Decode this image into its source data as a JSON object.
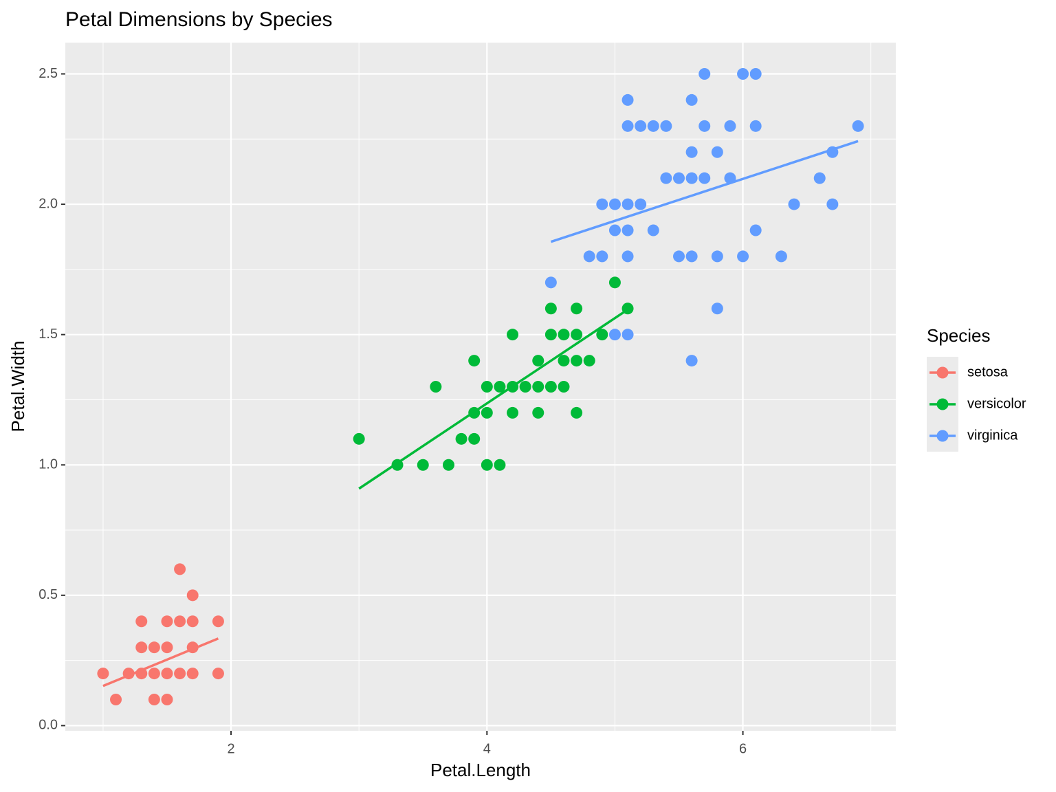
{
  "chart_data": {
    "type": "scatter",
    "title": "Petal Dimensions by Species",
    "x_label": "Petal.Length",
    "y_label": "Petal.Width",
    "legend_title": "Species",
    "legend_position": "right",
    "xlim": [
      0.705,
      7.195
    ],
    "ylim": [
      -0.02,
      2.62
    ],
    "xticks": [
      2,
      4,
      6
    ],
    "yticks": [
      {
        "value": 0,
        "label": "0.0"
      },
      0.5,
      {
        "value": 1,
        "label": "1.0"
      },
      1.5,
      {
        "value": 2,
        "label": "2.0"
      },
      2.5
    ],
    "x_minor_ticks": [
      1,
      3,
      5,
      7
    ],
    "y_minor_ticks": [
      0.25,
      0.75,
      1.25,
      1.75,
      2.25
    ],
    "grid": true,
    "series": [
      {
        "name": "setosa",
        "color": "#F8766D",
        "x": [
          1.0,
          1.1,
          1.2,
          1.3,
          1.3,
          1.3,
          1.4,
          1.4,
          1.4,
          1.5,
          1.5,
          1.5,
          1.5,
          1.6,
          1.6,
          1.6,
          1.7,
          1.7,
          1.7,
          1.7,
          1.9,
          1.9
        ],
        "values": [
          0.2,
          0.1,
          0.2,
          0.2,
          0.3,
          0.4,
          0.1,
          0.2,
          0.3,
          0.1,
          0.2,
          0.3,
          0.4,
          0.2,
          0.4,
          0.6,
          0.2,
          0.3,
          0.4,
          0.5,
          0.2,
          0.4
        ],
        "fit_x": [
          1.0,
          1.9
        ],
        "fit_y": [
          0.152,
          0.334
        ]
      },
      {
        "name": "versicolor",
        "color": "#00BA38",
        "x": [
          3.0,
          3.3,
          3.5,
          3.6,
          3.7,
          3.8,
          3.9,
          3.9,
          3.9,
          4.0,
          4.0,
          4.0,
          4.1,
          4.1,
          4.2,
          4.2,
          4.2,
          4.3,
          4.4,
          4.4,
          4.4,
          4.5,
          4.5,
          4.5,
          4.6,
          4.6,
          4.6,
          4.7,
          4.7,
          4.7,
          4.7,
          4.8,
          4.9,
          5.0,
          5.1
        ],
        "values": [
          1.1,
          1.0,
          1.0,
          1.3,
          1.0,
          1.1,
          1.1,
          1.2,
          1.4,
          1.0,
          1.2,
          1.3,
          1.0,
          1.3,
          1.2,
          1.3,
          1.5,
          1.3,
          1.2,
          1.3,
          1.4,
          1.3,
          1.5,
          1.6,
          1.3,
          1.4,
          1.5,
          1.2,
          1.4,
          1.5,
          1.6,
          1.4,
          1.5,
          1.7,
          1.6
        ],
        "fit_x": [
          3.0,
          5.1
        ],
        "fit_y": [
          0.909,
          1.596
        ]
      },
      {
        "name": "virginica",
        "color": "#619CFF",
        "x": [
          4.5,
          4.8,
          4.9,
          4.9,
          5.0,
          5.0,
          5.0,
          5.1,
          5.1,
          5.1,
          5.1,
          5.1,
          5.1,
          5.2,
          5.2,
          5.3,
          5.3,
          5.4,
          5.4,
          5.5,
          5.5,
          5.6,
          5.6,
          5.6,
          5.6,
          5.6,
          5.7,
          5.7,
          5.7,
          5.8,
          5.8,
          5.8,
          5.9,
          5.9,
          6.0,
          6.0,
          6.1,
          6.1,
          6.1,
          6.3,
          6.4,
          6.6,
          6.7,
          6.7,
          6.9
        ],
        "values": [
          1.7,
          1.8,
          1.8,
          2.0,
          1.5,
          1.9,
          2.0,
          1.5,
          1.8,
          1.9,
          2.0,
          2.3,
          2.4,
          2.0,
          2.3,
          1.9,
          2.3,
          2.1,
          2.3,
          1.8,
          2.1,
          1.4,
          1.8,
          2.1,
          2.2,
          2.4,
          2.1,
          2.3,
          2.5,
          1.6,
          1.8,
          2.2,
          2.1,
          2.3,
          1.8,
          2.5,
          1.9,
          2.3,
          2.5,
          1.8,
          2.0,
          2.1,
          2.0,
          2.2,
          2.3
        ],
        "fit_x": [
          4.5,
          6.9
        ],
        "fit_y": [
          1.856,
          2.242
        ]
      }
    ]
  }
}
